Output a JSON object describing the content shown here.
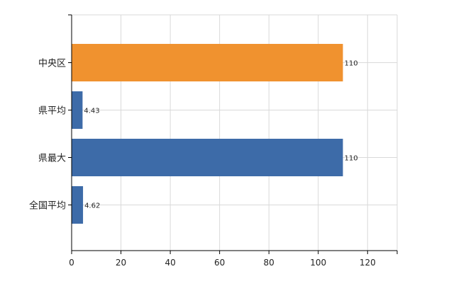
{
  "chart_data": {
    "type": "bar",
    "orientation": "horizontal",
    "categories": [
      "中央区",
      "県平均",
      "県最大",
      "全国平均"
    ],
    "values": [
      110,
      4.43,
      110,
      4.62
    ],
    "data_labels": [
      "110",
      "4.43",
      "110",
      "4.62"
    ],
    "colors": [
      "#f0922f",
      "#3d6ba8",
      "#3d6ba8",
      "#3d6ba8"
    ],
    "xlim": [
      0,
      132
    ],
    "x_ticks": [
      0,
      20,
      40,
      60,
      80,
      100,
      120
    ],
    "x_tick_labels": [
      "0",
      "20",
      "40",
      "60",
      "80",
      "100",
      "120"
    ],
    "grid": true,
    "legend": "none",
    "title": "",
    "xlabel": "",
    "ylabel": ""
  }
}
